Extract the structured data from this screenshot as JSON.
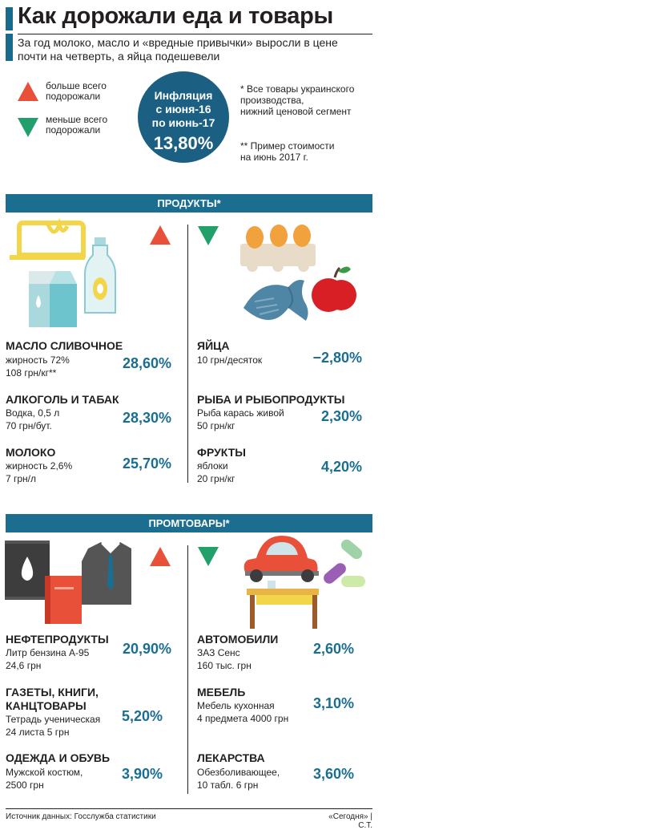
{
  "header": {
    "title": "Как дорожали еда и товары",
    "subtitle": "За год молоко, масло и «вредные привычки» выросли в цене почти на четверть, а яйца подешевели"
  },
  "legend": {
    "up_label": "больше всего подорожали",
    "down_label": "меньше всего подорожали"
  },
  "inflation": {
    "label": "Инфляция\nс июня-16\nпо июнь-17",
    "value": "13,80%"
  },
  "notes": {
    "note1": "* Все товары украинского\nпроизводства,\nнижний ценовой сегмент",
    "note2": "** Пример стоимости\nна июнь 2017 г."
  },
  "sections": {
    "products": {
      "title": "ПРОДУКТЫ*",
      "up_items": [
        {
          "name": "МАСЛО СЛИВОЧНОЕ",
          "detail": "жирность 72%\n108 грн/кг**",
          "value": "28,60%"
        },
        {
          "name": "АЛКОГОЛЬ И ТАБАК",
          "detail": "Водка, 0,5 л\n70 грн/бут.",
          "value": "28,30%"
        },
        {
          "name": "МОЛОКО",
          "detail": "жирность 2,6%\n7 грн/л",
          "value": "25,70%"
        }
      ],
      "down_items": [
        {
          "name": "ЯЙЦА",
          "detail": "10 грн/десяток",
          "value": "−2,80%"
        },
        {
          "name": "РЫБА И РЫБОПРОДУКТЫ",
          "detail": "Рыба карась живой\n50 грн/кг",
          "value": "2,30%"
        },
        {
          "name": "ФРУКТЫ",
          "detail": "яблоки\n20 грн/кг",
          "value": "4,20%"
        }
      ]
    },
    "goods": {
      "title": "ПРОМТОВАРЫ*",
      "up_items": [
        {
          "name": "НЕФТЕПРОДУКТЫ",
          "detail": "Литр бензина А-95\n24,6 грн",
          "value": "20,90%"
        },
        {
          "name": "ГАЗЕТЫ, КНИГИ,\nКАНЦТОВАРЫ",
          "detail": "Тетрадь ученическая\n24 листа 5 грн",
          "value": "5,20%"
        },
        {
          "name": "ОДЕЖДА И ОБУВЬ",
          "detail": "Мужской костюм,\n2500 грн",
          "value": "3,90%"
        }
      ],
      "down_items": [
        {
          "name": "АВТОМОБИЛИ",
          "detail": "ЗАЗ Сенс\n160 тыс. грн",
          "value": "2,60%"
        },
        {
          "name": "МЕБЕЛЬ",
          "detail": "Мебель кухонная\n4 предмета 4000 грн",
          "value": "3,10%"
        },
        {
          "name": "ЛЕКАРСТВА",
          "detail": "Обезболивающее,\n10 табл.  6 грн",
          "value": "3,60%"
        }
      ]
    }
  },
  "footer": {
    "source": "Источник данных: Госслужба статистики",
    "credit": "«Сегодня» | С.Т."
  },
  "colors": {
    "accent": "#1b6e90",
    "up": "#e8503a",
    "down": "#22a06b",
    "circle": "#1b5f82"
  }
}
